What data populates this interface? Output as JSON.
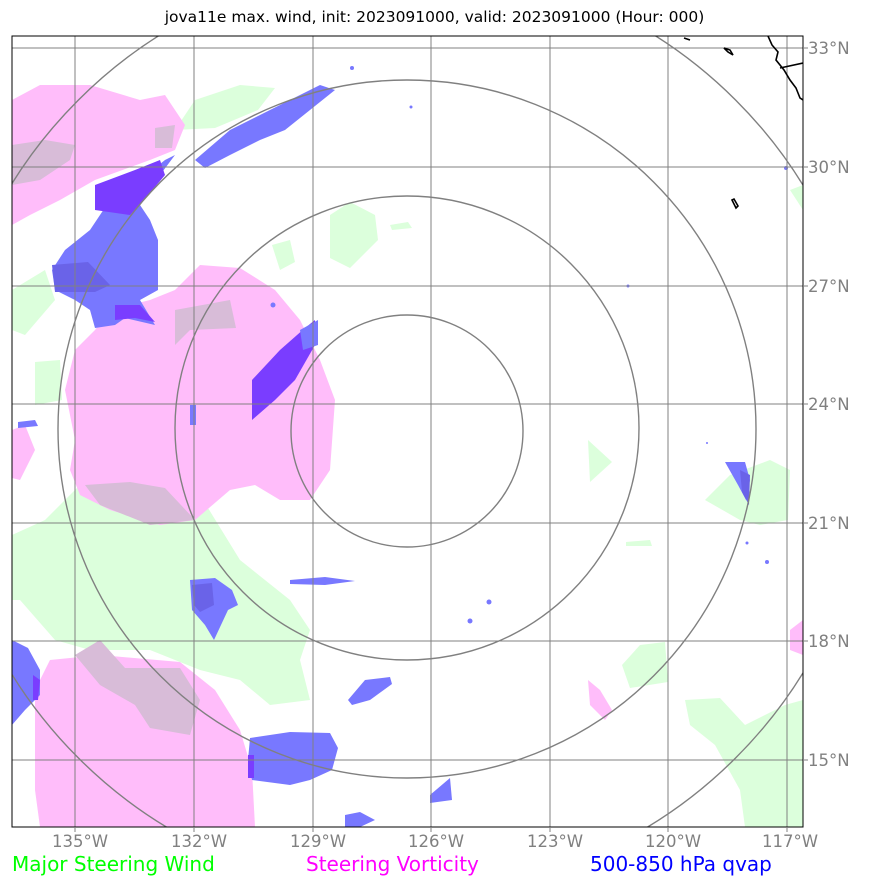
{
  "title": "jova11e max. wind, init: 2023091000, valid: 2023091000 (Hour: 000)",
  "map": {
    "lon_labels": [
      "135°W",
      "132°W",
      "129°W",
      "126°W",
      "123°W",
      "120°W",
      "117°W"
    ],
    "lat_labels": [
      "33°N",
      "30°N",
      "27°N",
      "24°N",
      "21°N",
      "18°N",
      "15°N"
    ],
    "range_rings": 4
  },
  "legend": {
    "wind": "Major Steering Wind",
    "vorticity": "Steering Vorticity",
    "qvap": "500-850 hPa qvap"
  },
  "colors": {
    "wind": "#00ff00",
    "vorticity": "#ff00ff",
    "qvap": "#0000ff",
    "wind_fill": "#dcffdc",
    "vorticity_fill": "#ffbdfa",
    "qvap_fill": "#7878ff",
    "qvap_dark": "#7a3dff",
    "grid": "#808080"
  }
}
